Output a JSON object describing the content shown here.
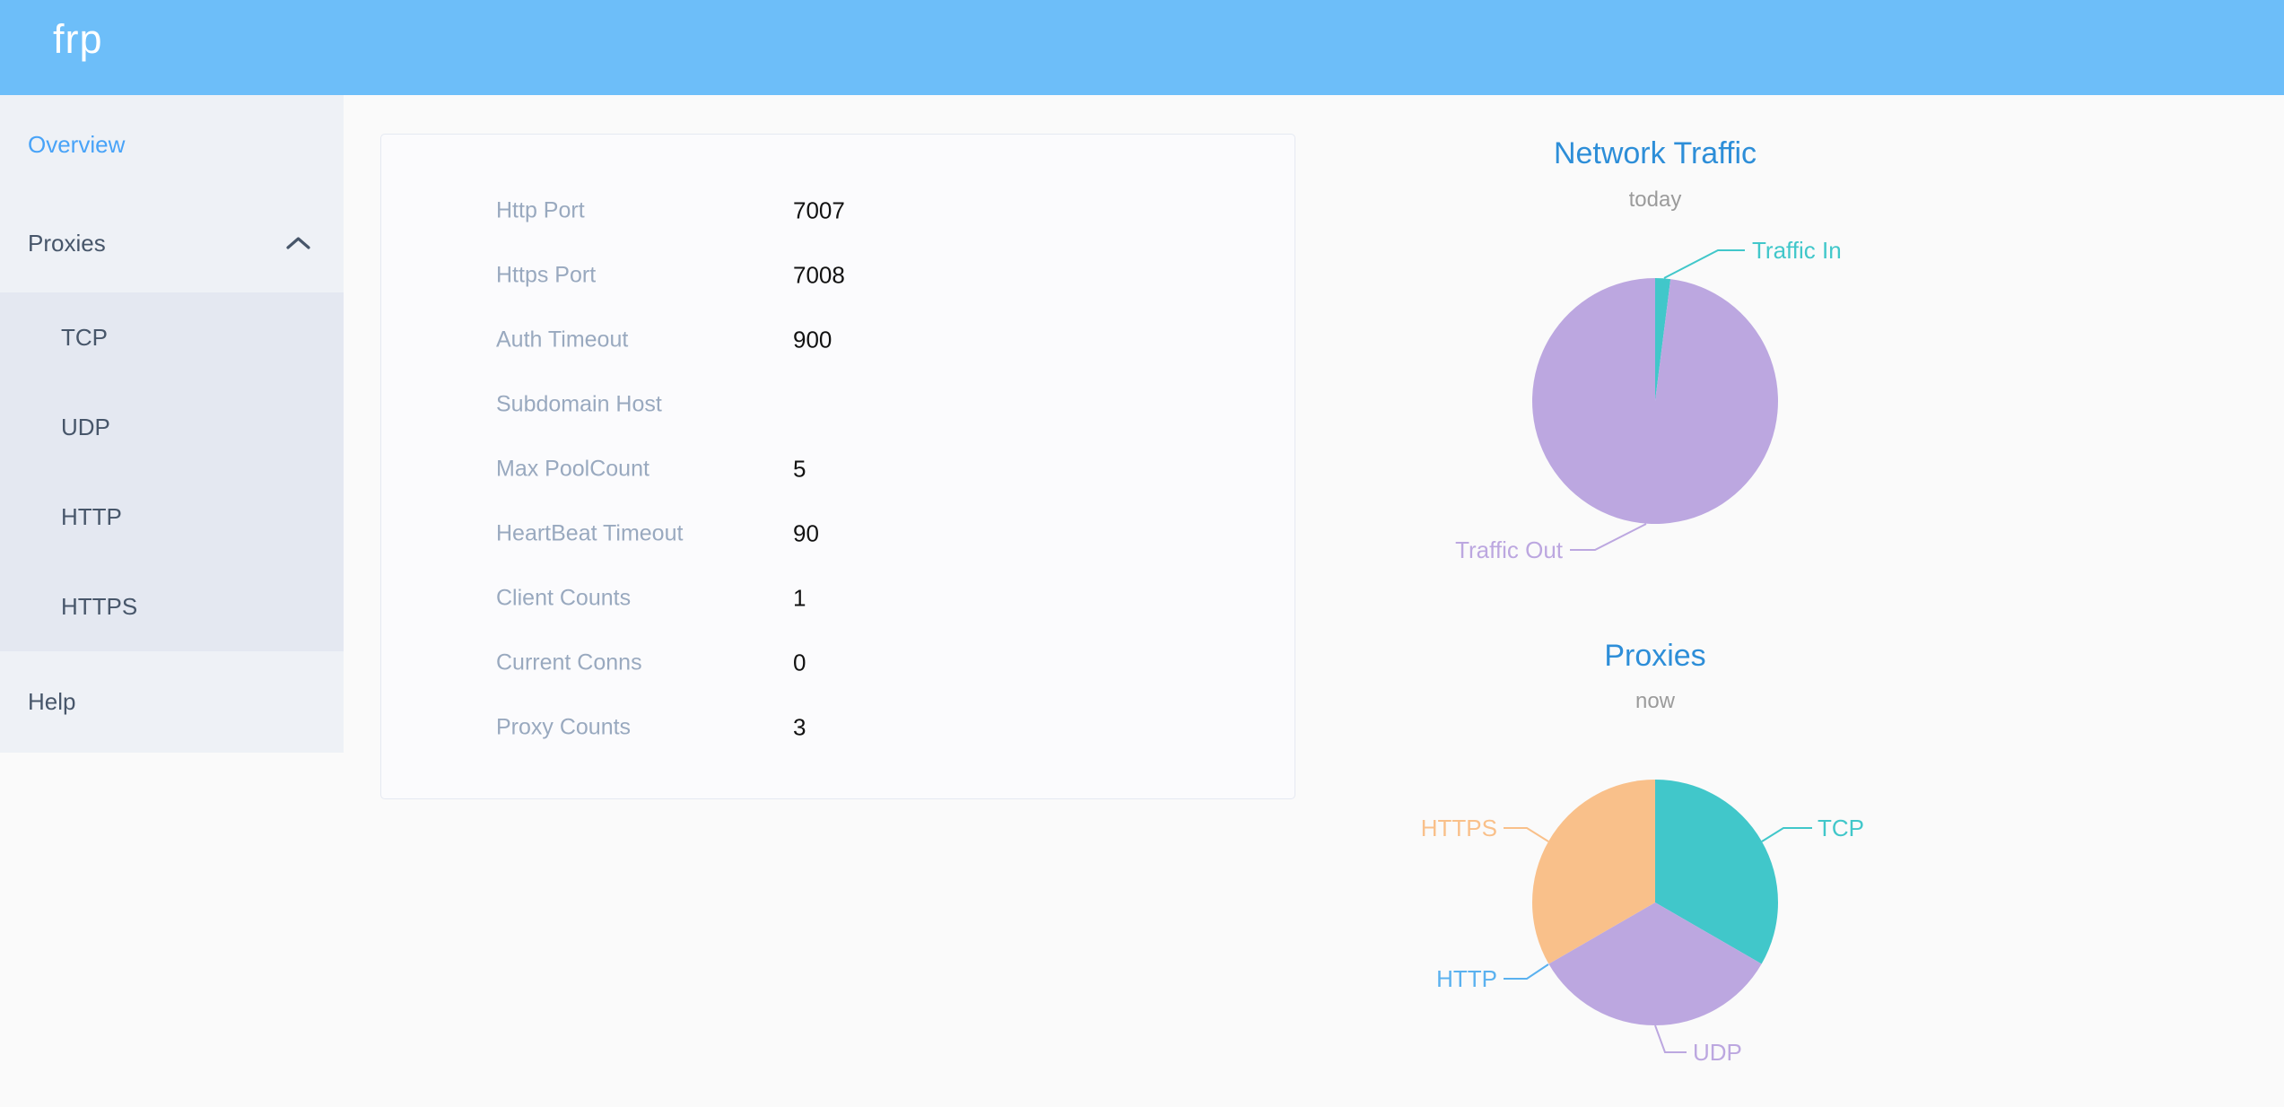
{
  "header": {
    "logo": "frp",
    "background_color": "#6dbef9"
  },
  "sidebar": {
    "active_item": "Overview",
    "active_color": "#48a3f8",
    "text_color": "#47566a",
    "items": [
      {
        "label": "Overview"
      },
      {
        "label": "Proxies"
      },
      {
        "label": "TCP"
      },
      {
        "label": "UDP"
      },
      {
        "label": "HTTP"
      },
      {
        "label": "HTTPS"
      },
      {
        "label": "Help"
      }
    ]
  },
  "server_info": {
    "rows": [
      {
        "label": "Http Port",
        "value": "7007"
      },
      {
        "label": "Https Port",
        "value": "7008"
      },
      {
        "label": "Auth Timeout",
        "value": "900"
      },
      {
        "label": "Subdomain Host",
        "value": ""
      },
      {
        "label": "Max PoolCount",
        "value": "5"
      },
      {
        "label": "HeartBeat Timeout",
        "value": "90"
      },
      {
        "label": "Client Counts",
        "value": "1"
      },
      {
        "label": "Current Conns",
        "value": "0"
      },
      {
        "label": "Proxy Counts",
        "value": "3"
      }
    ]
  },
  "chart_data": [
    {
      "type": "pie",
      "title": "Network Traffic",
      "subtitle": "today",
      "title_color": "#2d8ed8",
      "subtitle_color": "#9b9b9b",
      "legend_position": "none",
      "labels": "outside-with-leader-lines",
      "slices": [
        {
          "label": "Traffic In",
          "percent": 2,
          "color": "#41c7ca"
        },
        {
          "label": "Traffic Out",
          "percent": 98,
          "color": "#bca7e0"
        }
      ]
    },
    {
      "type": "pie",
      "title": "Proxies",
      "subtitle": "now",
      "title_color": "#2d8ed8",
      "subtitle_color": "#9b9b9b",
      "legend_position": "none",
      "labels": "outside-with-leader-lines",
      "slices": [
        {
          "label": "TCP",
          "value": 1,
          "color": "#41c7ca"
        },
        {
          "label": "UDP",
          "value": 1,
          "color": "#bca7e0"
        },
        {
          "label": "HTTP",
          "value": 0,
          "color": "#5ab1ef"
        },
        {
          "label": "HTTPS",
          "value": 1,
          "color": "#f9c08a"
        }
      ]
    }
  ]
}
